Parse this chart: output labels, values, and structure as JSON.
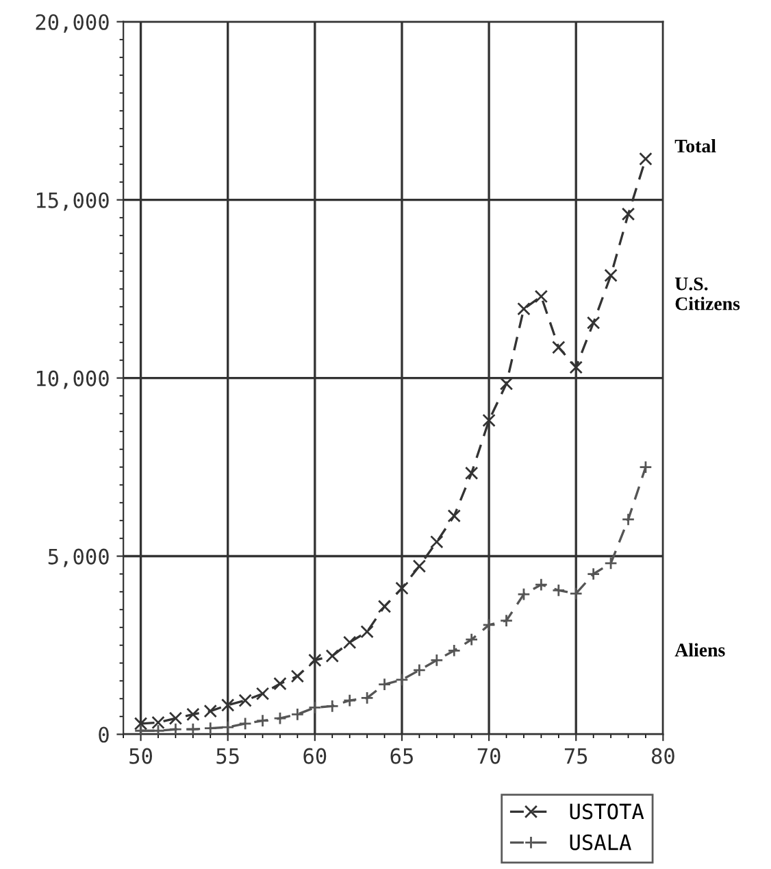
{
  "chart_data": {
    "type": "line",
    "x": [
      50,
      51,
      52,
      53,
      54,
      55,
      56,
      57,
      58,
      59,
      60,
      61,
      62,
      63,
      64,
      65,
      66,
      67,
      68,
      69,
      70,
      71,
      72,
      73,
      74,
      75,
      76,
      77,
      78,
      79
    ],
    "series": [
      {
        "name": "USTOTA",
        "color": "#333333",
        "marker": "cross",
        "values": [
          300,
          330,
          450,
          560,
          650,
          820,
          950,
          1140,
          1420,
          1630,
          2080,
          2200,
          2580,
          2880,
          3590,
          4100,
          4720,
          5400,
          6130,
          7330,
          8810,
          9840,
          11940,
          12290,
          10860,
          10300,
          11550,
          12880,
          14600,
          16150
        ]
      },
      {
        "name": "USALA",
        "color": "#555555",
        "marker": "plus",
        "values": [
          100,
          100,
          140,
          140,
          170,
          200,
          300,
          380,
          450,
          560,
          750,
          790,
          950,
          1020,
          1400,
          1530,
          1800,
          2080,
          2350,
          2660,
          3070,
          3190,
          3930,
          4200,
          4040,
          3950,
          4500,
          4800,
          6030,
          7500
        ]
      }
    ],
    "xlim": [
      49,
      80
    ],
    "xticks": [
      50,
      55,
      60,
      65,
      70,
      75,
      80
    ],
    "ylim": [
      0,
      20000
    ],
    "yticks": [
      {
        "value": 0,
        "label": "0"
      },
      {
        "value": 5000,
        "label": "5,000"
      },
      {
        "value": 10000,
        "label": "10,000"
      },
      {
        "value": 15000,
        "label": "15,000"
      },
      {
        "value": 20000,
        "label": "20,000"
      }
    ],
    "grid": true,
    "legend": "bottom right",
    "line_style": "dashed",
    "annotations": [
      "Total",
      "U.S.\nCitizens",
      "Aliens"
    ]
  }
}
